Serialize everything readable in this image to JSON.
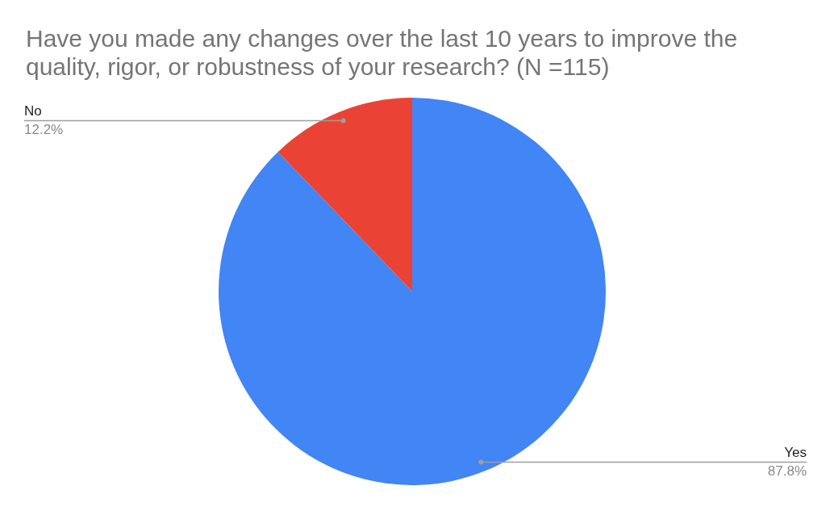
{
  "chart_data": {
    "type": "pie",
    "title": "Have you made any changes over the last 10 years to improve the quality, rigor, or robustness of your research? (N =115)",
    "categories": [
      "Yes",
      "No"
    ],
    "values": [
      87.8,
      12.2
    ],
    "colors": [
      "#4285f4",
      "#ea4335"
    ],
    "value_labels": [
      "87.8%",
      "12.2%"
    ],
    "legend": false
  }
}
